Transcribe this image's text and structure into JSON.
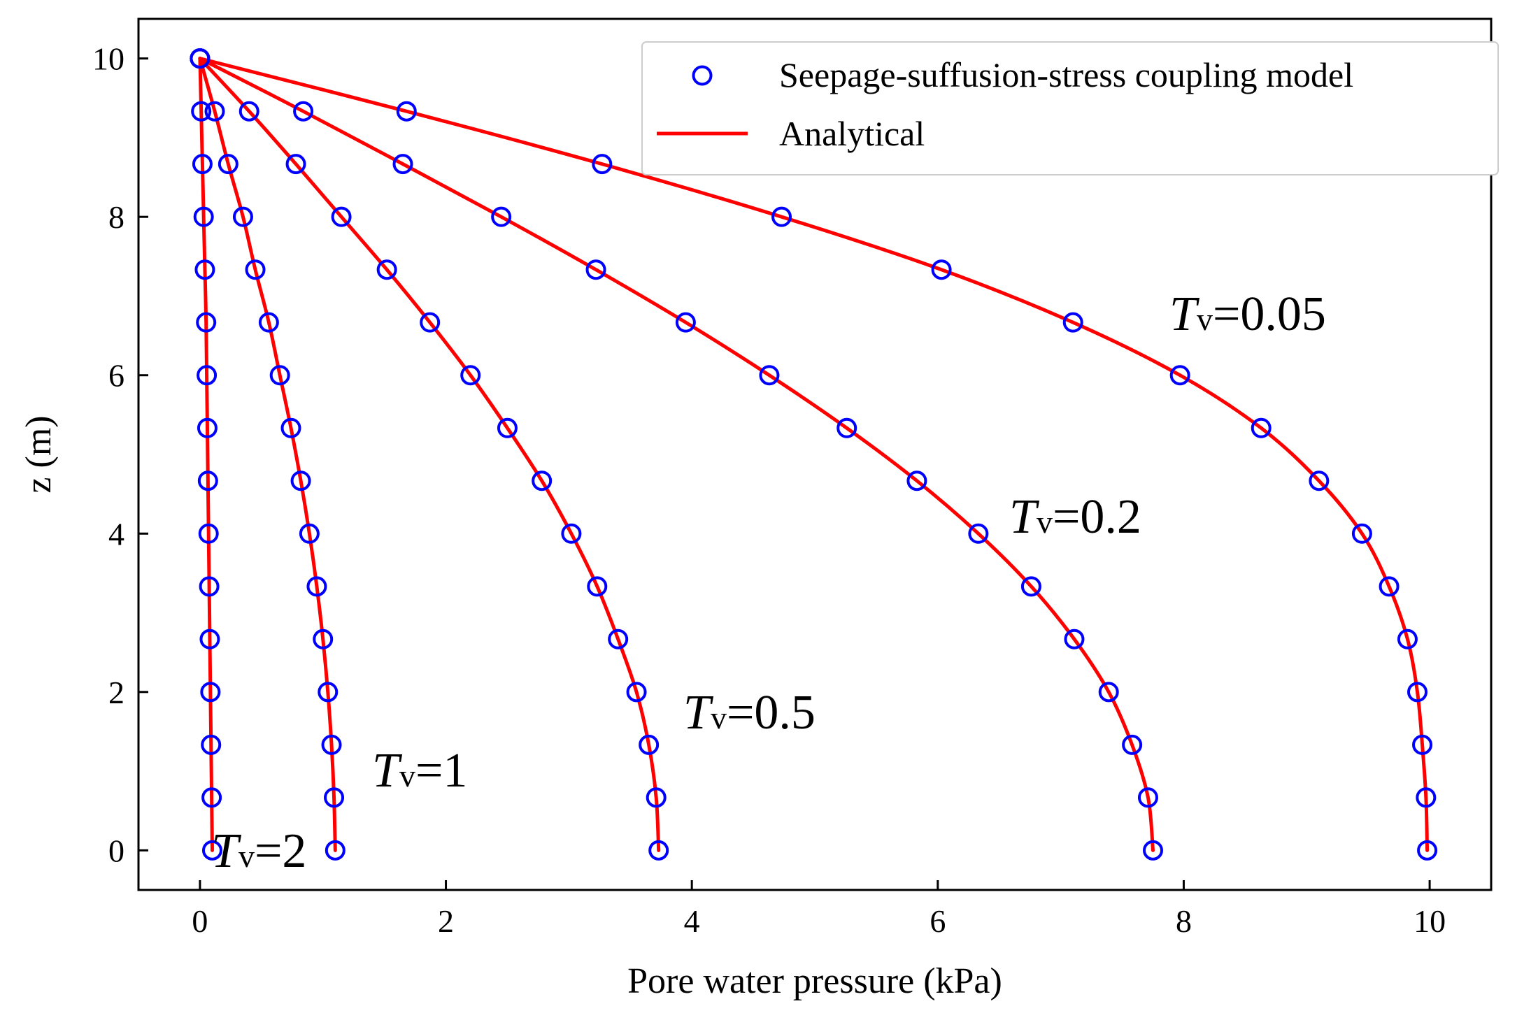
{
  "chart_data": {
    "type": "line",
    "xlabel": "Pore water pressure (kPa)",
    "ylabel": "z (m)",
    "xlim": [
      -0.5,
      10.5
    ],
    "ylim": [
      -0.5,
      10.5
    ],
    "x_ticks": [
      0,
      2,
      4,
      6,
      8,
      10
    ],
    "y_ticks": [
      0,
      2,
      4,
      6,
      8,
      10
    ],
    "grid": false,
    "legend_position": "top-right",
    "legend": [
      {
        "label": "Seepage-suffusion-stress coupling model",
        "style": "marker"
      },
      {
        "label": "Analytical",
        "style": "line"
      }
    ],
    "colors": {
      "model": "#0000ff",
      "analytical": "#ff0000"
    },
    "z": [
      10,
      9.333,
      8.667,
      8,
      7.333,
      6.667,
      6,
      5.333,
      4.667,
      4,
      3.333,
      2.667,
      2,
      1.333,
      0.667,
      0
    ],
    "series": [
      {
        "label_prefix": "T",
        "label_subscript": "v",
        "label_value": "=0.05",
        "values": [
          0,
          1.68,
          3.27,
          4.73,
          6.03,
          7.1,
          7.97,
          8.63,
          9.1,
          9.45,
          9.67,
          9.82,
          9.9,
          9.94,
          9.97,
          9.98
        ]
      },
      {
        "label_prefix": "T",
        "label_subscript": "v",
        "label_value": "=0.2",
        "values": [
          0,
          0.84,
          1.65,
          2.45,
          3.22,
          3.95,
          4.63,
          5.26,
          5.83,
          6.33,
          6.76,
          7.11,
          7.39,
          7.58,
          7.71,
          7.75
        ]
      },
      {
        "label_prefix": "T",
        "label_subscript": "v",
        "label_value": "=0.5",
        "values": [
          0,
          0.4,
          0.78,
          1.15,
          1.52,
          1.87,
          2.2,
          2.5,
          2.78,
          3.02,
          3.23,
          3.4,
          3.55,
          3.65,
          3.71,
          3.73
        ]
      },
      {
        "label_prefix": "T",
        "label_subscript": "v",
        "label_value": "=1",
        "values": [
          0,
          0.12,
          0.23,
          0.35,
          0.45,
          0.56,
          0.65,
          0.74,
          0.82,
          0.89,
          0.95,
          1.0,
          1.04,
          1.07,
          1.09,
          1.1
        ]
      },
      {
        "label_prefix": "T",
        "label_subscript": "v",
        "label_value": "=2",
        "values": [
          0,
          0.01,
          0.02,
          0.03,
          0.04,
          0.05,
          0.055,
          0.06,
          0.065,
          0.07,
          0.075,
          0.08,
          0.085,
          0.09,
          0.095,
          0.1
        ]
      }
    ]
  }
}
